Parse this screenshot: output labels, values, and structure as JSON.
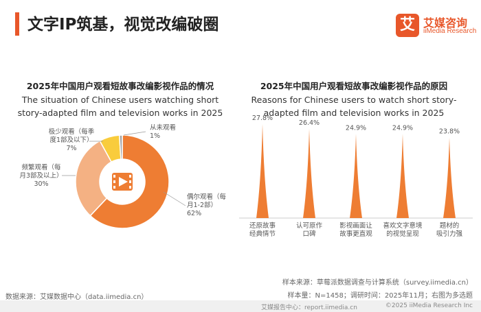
{
  "header": {
    "title": "文字IP筑基，视觉改编破圈",
    "logo_mark": "艾",
    "logo_cn": "艾媒咨询",
    "logo_en": "iiMedia Research",
    "accent": "#e8572a"
  },
  "chart_data": [
    {
      "type": "pie",
      "title": "2025年中国用户观看短故事改编影视作品的情况",
      "subtitle": "The situation of Chinese users watching short story-adapted film and television works in 2025",
      "center_icon": "video-icon",
      "slices": [
        {
          "label": "偶尔观看（每月1-2部）",
          "value": 62,
          "display": "62%",
          "color": "#ee7d33"
        },
        {
          "label": "频繁观看（每月3部及以上）",
          "value": 30,
          "display": "30%",
          "color": "#f4b183"
        },
        {
          "label": "极少观看（每季度1部及以下）",
          "value": 7,
          "display": "7%",
          "color": "#f9cc3c"
        },
        {
          "label": "从未观看",
          "value": 1,
          "display": "1%",
          "color": "#a6a6a6"
        }
      ]
    },
    {
      "type": "bar",
      "title": "2025年中国用户观看短故事改编影视作品的原因",
      "subtitle": "Reasons for Chinese users to watch short story-adapted film and television works in 2025",
      "categories": [
        "还原故事经典情节",
        "认可原作口碑",
        "影视画面让故事更直观",
        "喜欢文字意境的视觉呈现",
        "题材的吸引力强"
      ],
      "category_lines": [
        [
          "还原故事",
          "经典情节"
        ],
        [
          "认可原作",
          "口碑"
        ],
        [
          "影视画面让",
          "故事更直观"
        ],
        [
          "喜欢文字意境",
          "的视觉呈现"
        ],
        [
          "题材的",
          "吸引力强"
        ]
      ],
      "values": [
        27.8,
        26.4,
        24.9,
        24.9,
        23.8
      ],
      "value_labels": [
        "27.8%",
        "26.4%",
        "24.9%",
        "24.9%",
        "23.8%"
      ],
      "color": "#ee7d33"
    }
  ],
  "footer": {
    "source_left": "数据来源：艾媒数据中心（data.iimedia.cn）",
    "sample_source": "样本来源：草莓派数据调查与计算系统（survey.iimedia.cn）",
    "sample_info": "样本量：N=1458；调研时间：2025年11月；右图为多选题",
    "bottom_center": "艾媒报告中心：report.iimedia.cn",
    "bottom_right": "©2025  iiMedia Research  Inc"
  }
}
